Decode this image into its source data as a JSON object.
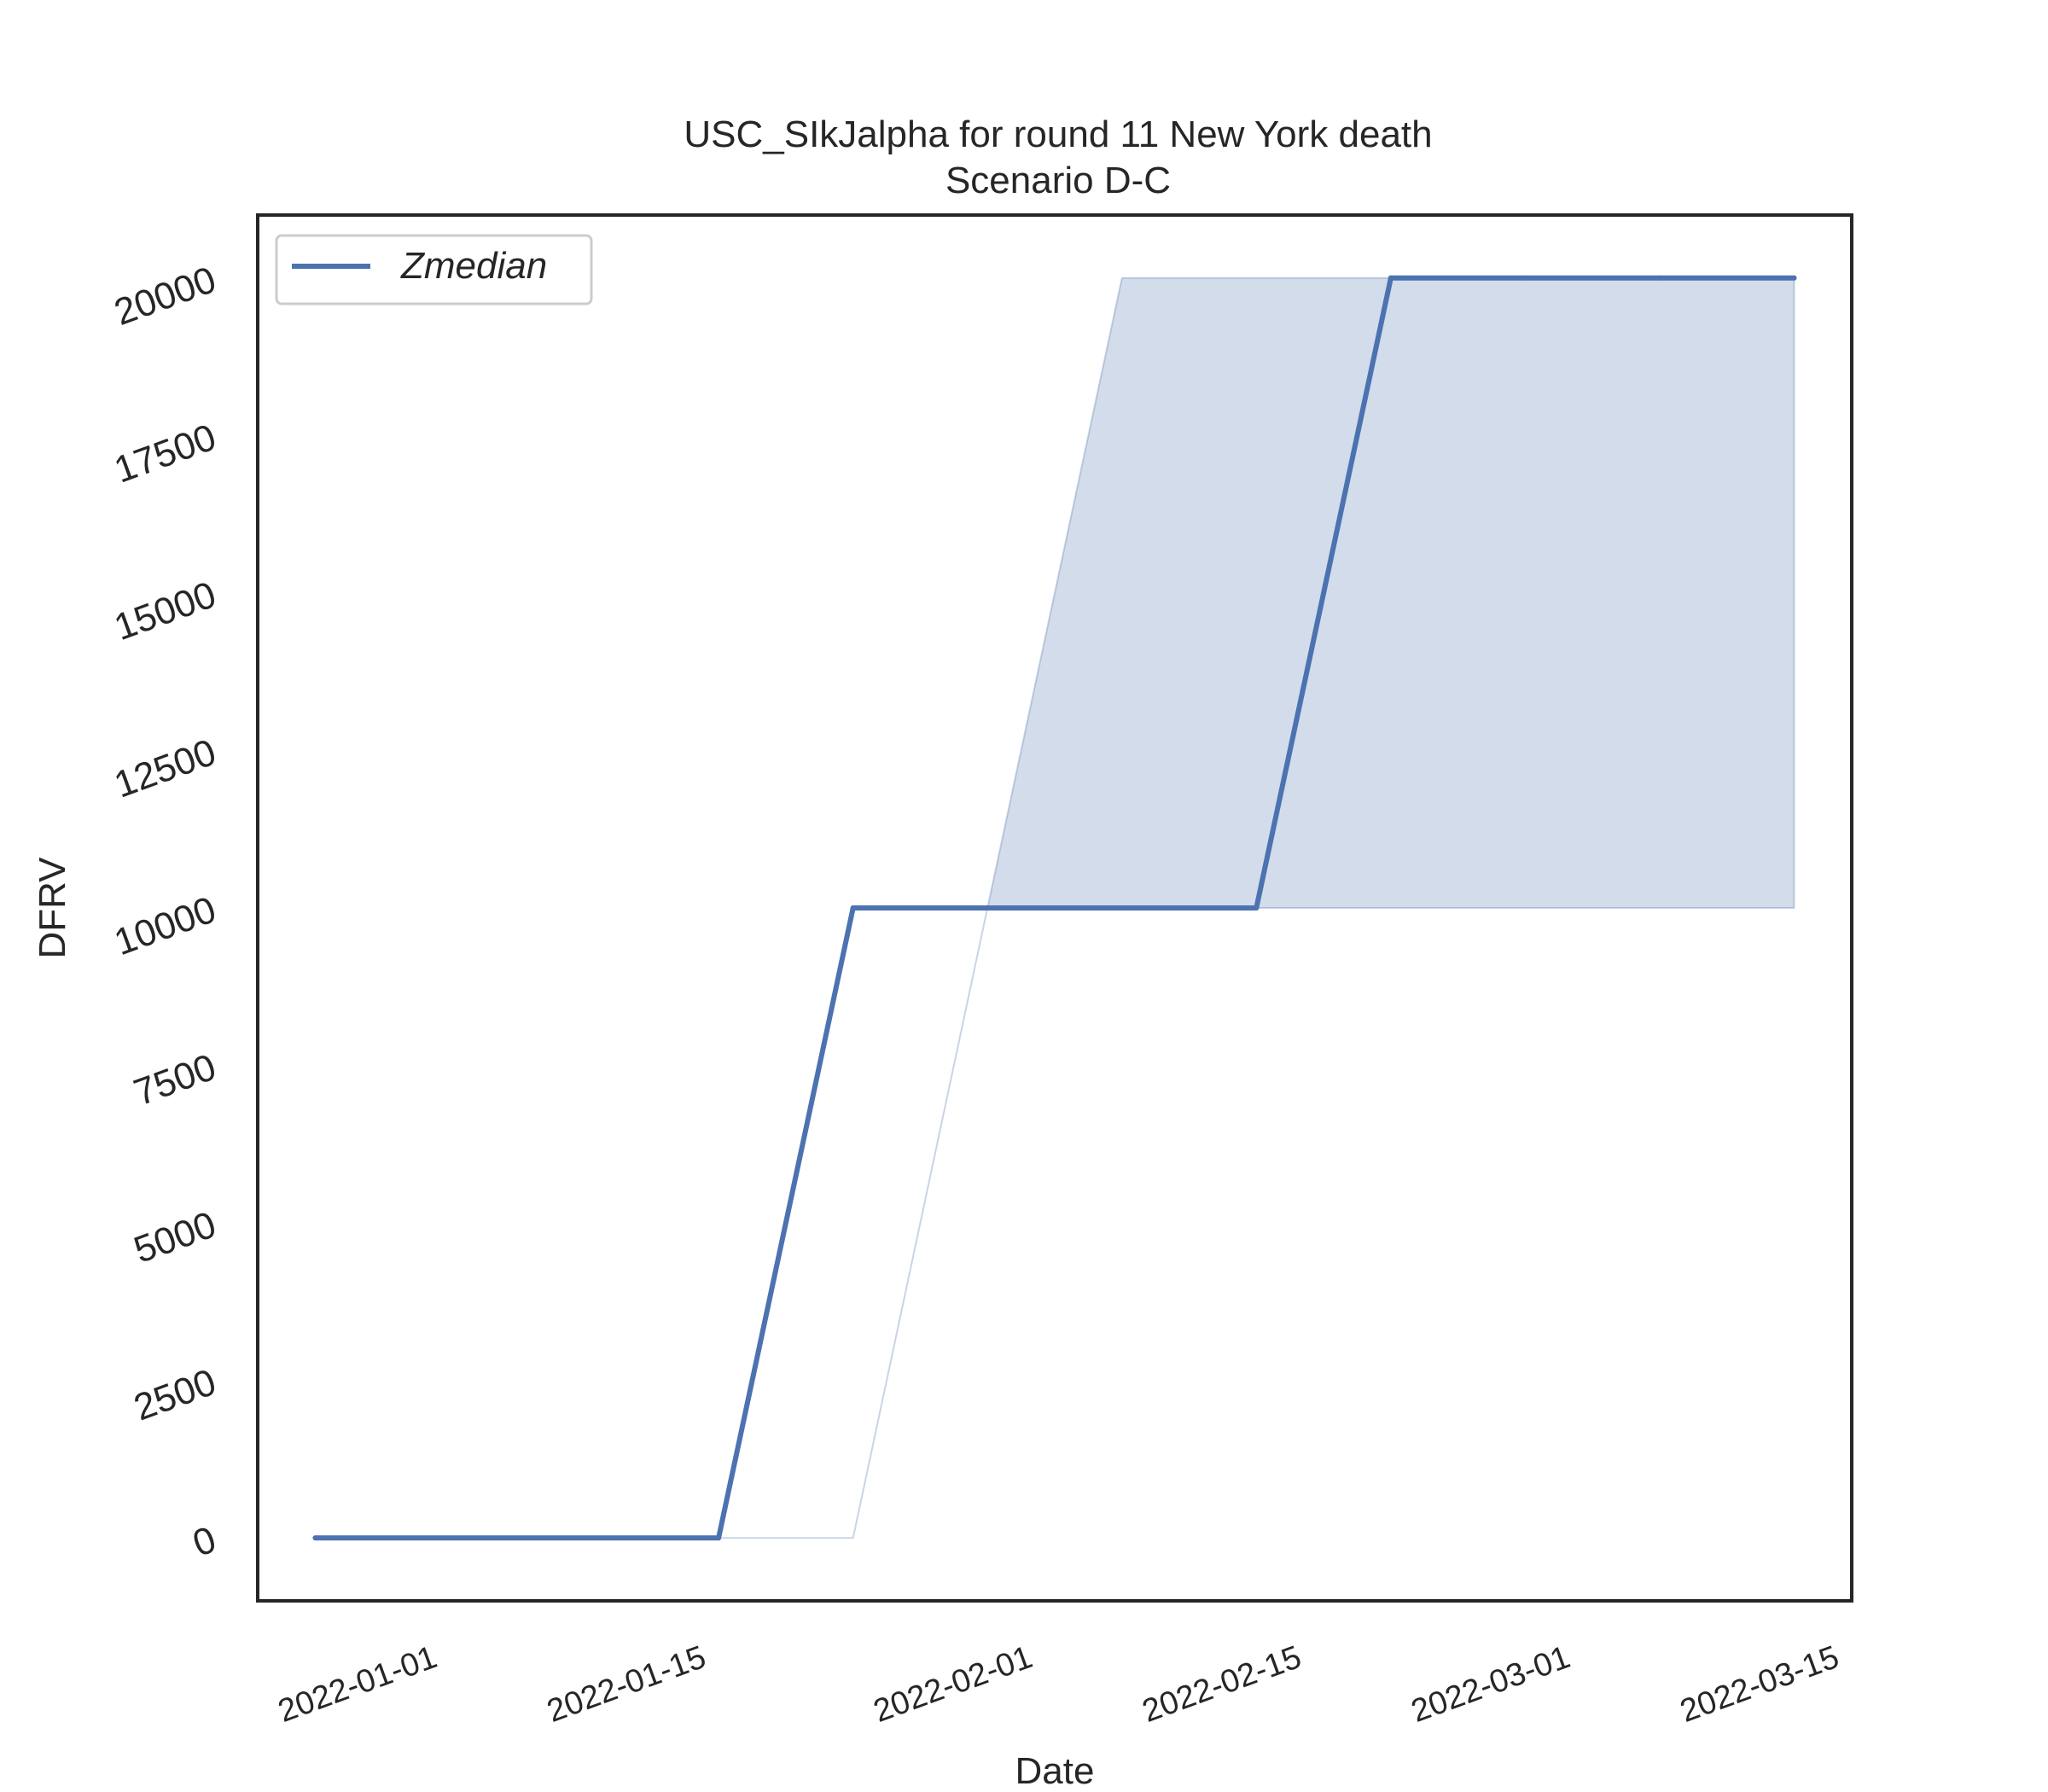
{
  "chart_data": {
    "type": "line",
    "title": "USC_SIkJalpha for round 11 New York death",
    "subtitle": "Scenario D-C",
    "xlabel": "Date",
    "ylabel": "DFRV",
    "x_ticks": [
      "2022-01-01",
      "2022-01-15",
      "2022-02-01",
      "2022-02-15",
      "2022-03-01",
      "2022-03-15"
    ],
    "y_ticks": [
      "0",
      "2500",
      "5000",
      "7500",
      "10000",
      "12500",
      "15000",
      "17500",
      "20000"
    ],
    "xlim": [
      "2021-12-23",
      "2022-03-16"
    ],
    "ylim": [
      -1000,
      21000
    ],
    "grid": false,
    "legend_position": "top-left",
    "series": [
      {
        "name": "Zmedian",
        "color": "#4c72b0",
        "x": [
          "2021-12-26",
          "2022-01-16",
          "2022-01-23",
          "2022-01-30",
          "2022-02-06",
          "2022-02-13",
          "2022-02-20",
          "2022-02-27",
          "2022-03-06",
          "2022-03-13"
        ],
        "y": [
          0,
          0,
          10000,
          10000,
          10000,
          10000,
          20000,
          20000,
          20000,
          20000
        ]
      }
    ],
    "band": {
      "color": "#4c72b0",
      "x": [
        "2021-12-26",
        "2022-01-16",
        "2022-01-23",
        "2022-01-30",
        "2022-02-06",
        "2022-02-13",
        "2022-02-20",
        "2022-02-27",
        "2022-03-06",
        "2022-03-13"
      ],
      "lower": [
        0,
        0,
        0,
        10000,
        10000,
        10000,
        10000,
        10000,
        10000,
        10000
      ],
      "upper": [
        0,
        0,
        0,
        10000,
        20000,
        20000,
        20000,
        20000,
        20000,
        20000
      ]
    }
  }
}
